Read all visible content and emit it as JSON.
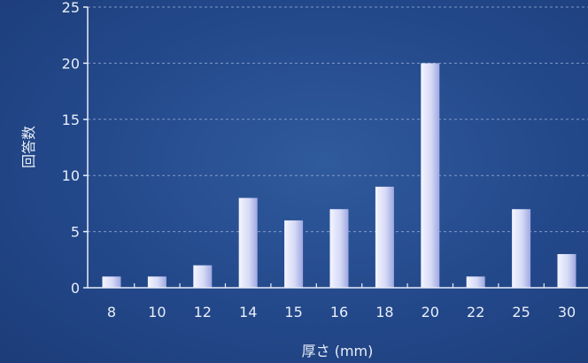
{
  "chart_data": {
    "type": "bar",
    "title": "",
    "xlabel": "厚さ (mm)",
    "ylabel": "回答数",
    "categories": [
      "8",
      "10",
      "12",
      "14",
      "15",
      "16",
      "18",
      "20",
      "22",
      "25",
      "30"
    ],
    "values": [
      1,
      1,
      2,
      8,
      6,
      7,
      9,
      20,
      1,
      7,
      3
    ],
    "ylim": [
      0,
      25
    ],
    "yticks": [
      0,
      5,
      10,
      15,
      20,
      25
    ],
    "grid": true,
    "legend": "none"
  },
  "colors": {
    "background": "#23488a",
    "bar_light": "#eef0ff",
    "bar_dark": "#a9b2e6",
    "axis": "#e8eef8",
    "grid": "#9fb4dc"
  }
}
